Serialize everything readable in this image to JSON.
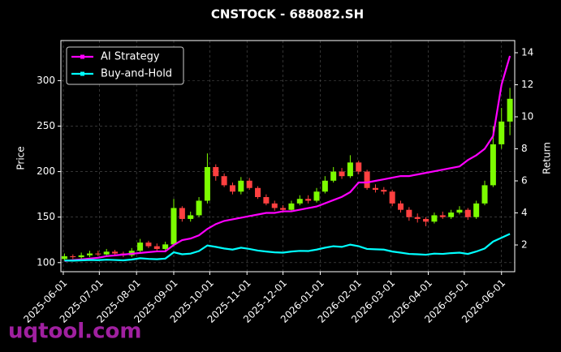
{
  "chart_data": {
    "type": "candlestick",
    "title": "CNSTOCK - 688082.SH",
    "ylabel": "Price",
    "y2label": "Return",
    "watermark": "uqtool.com",
    "legend": "upper left",
    "grid": true,
    "up_color": "#7cfc00",
    "down_color": "#ff4040",
    "x": [
      "2025-06-02",
      "2025-06-09",
      "2025-06-16",
      "2025-06-23",
      "2025-06-30",
      "2025-07-07",
      "2025-07-14",
      "2025-07-21",
      "2025-07-28",
      "2025-08-04",
      "2025-08-11",
      "2025-08-18",
      "2025-08-25",
      "2025-09-01",
      "2025-09-08",
      "2025-09-15",
      "2025-09-22",
      "2025-09-29",
      "2025-10-06",
      "2025-10-13",
      "2025-10-20",
      "2025-10-27",
      "2025-11-03",
      "2025-11-10",
      "2025-11-17",
      "2025-11-24",
      "2025-12-01",
      "2025-12-08",
      "2025-12-15",
      "2025-12-22",
      "2025-12-29",
      "2026-01-05",
      "2026-01-12",
      "2026-01-19",
      "2026-01-26",
      "2026-02-02",
      "2026-02-09",
      "2026-02-16",
      "2026-02-23",
      "2026-03-02",
      "2026-03-09",
      "2026-03-16",
      "2026-03-23",
      "2026-03-30",
      "2026-04-06",
      "2026-04-13",
      "2026-04-20",
      "2026-04-27",
      "2026-05-04",
      "2026-05-11",
      "2026-05-18",
      "2026-05-25",
      "2026-06-01",
      "2026-06-08"
    ],
    "open": [
      104,
      107,
      106,
      108,
      110,
      109,
      112,
      110,
      108,
      113,
      122,
      118,
      115,
      120,
      160,
      148,
      152,
      168,
      205,
      195,
      185,
      178,
      190,
      182,
      172,
      165,
      160,
      158,
      165,
      170,
      168,
      178,
      190,
      200,
      195,
      210,
      200,
      182,
      180,
      178,
      165,
      158,
      150,
      148,
      145,
      152,
      150,
      155,
      158,
      150,
      165,
      185,
      230,
      255
    ],
    "high": [
      110,
      109,
      111,
      113,
      113,
      115,
      114,
      112,
      116,
      126,
      124,
      121,
      123,
      170,
      162,
      156,
      172,
      220,
      208,
      198,
      188,
      194,
      193,
      184,
      175,
      168,
      163,
      168,
      174,
      174,
      182,
      195,
      205,
      204,
      218,
      212,
      202,
      186,
      183,
      180,
      168,
      161,
      154,
      150,
      155,
      156,
      158,
      162,
      160,
      168,
      190,
      250,
      270,
      292
    ],
    "low": [
      102,
      104,
      104,
      106,
      107,
      107,
      108,
      106,
      106,
      111,
      116,
      113,
      113,
      118,
      145,
      145,
      150,
      165,
      190,
      183,
      175,
      175,
      180,
      170,
      163,
      157,
      155,
      156,
      163,
      165,
      166,
      176,
      188,
      192,
      193,
      197,
      180,
      177,
      175,
      162,
      155,
      146,
      144,
      140,
      143,
      148,
      148,
      153,
      147,
      148,
      163,
      183,
      225,
      240
    ],
    "close": [
      107,
      106,
      108,
      110,
      109,
      112,
      110,
      108,
      113,
      122,
      118,
      115,
      120,
      160,
      148,
      152,
      168,
      205,
      195,
      185,
      178,
      190,
      182,
      172,
      165,
      160,
      158,
      165,
      170,
      168,
      178,
      190,
      200,
      195,
      210,
      200,
      182,
      180,
      178,
      165,
      158,
      150,
      148,
      145,
      152,
      150,
      155,
      158,
      150,
      165,
      185,
      230,
      255,
      280
    ],
    "series": [
      {
        "name": "AI Strategy",
        "color": "#ff00ff",
        "axis": "y2",
        "values": [
          1.0,
          1.05,
          1.1,
          1.15,
          1.2,
          1.3,
          1.35,
          1.4,
          1.45,
          1.5,
          1.55,
          1.6,
          1.6,
          2.0,
          2.3,
          2.4,
          2.6,
          3.0,
          3.3,
          3.5,
          3.6,
          3.7,
          3.8,
          3.9,
          4.0,
          4.0,
          4.1,
          4.1,
          4.2,
          4.3,
          4.4,
          4.6,
          4.8,
          5.0,
          5.3,
          5.9,
          5.9,
          6.0,
          6.1,
          6.2,
          6.3,
          6.3,
          6.4,
          6.5,
          6.6,
          6.7,
          6.8,
          6.9,
          7.3,
          7.6,
          8.0,
          8.8,
          12.0,
          13.8
        ]
      },
      {
        "name": "Buy-and-Hold",
        "color": "#00ffff",
        "axis": "y2",
        "values": [
          1.03,
          1.02,
          1.04,
          1.06,
          1.05,
          1.08,
          1.06,
          1.04,
          1.09,
          1.17,
          1.13,
          1.11,
          1.15,
          1.54,
          1.42,
          1.46,
          1.62,
          1.97,
          1.88,
          1.78,
          1.71,
          1.83,
          1.75,
          1.65,
          1.59,
          1.54,
          1.52,
          1.59,
          1.63,
          1.62,
          1.71,
          1.83,
          1.92,
          1.88,
          2.02,
          1.92,
          1.75,
          1.73,
          1.71,
          1.59,
          1.52,
          1.44,
          1.42,
          1.39,
          1.46,
          1.44,
          1.49,
          1.52,
          1.44,
          1.59,
          1.78,
          2.21,
          2.45,
          2.69
        ]
      }
    ],
    "xlim": [
      "2025-05-30",
      "2026-06-12"
    ],
    "xticks": [
      "2025-06-01",
      "2025-07-01",
      "2025-08-01",
      "2025-09-01",
      "2025-10-01",
      "2025-11-01",
      "2025-12-01",
      "2026-01-01",
      "2026-02-01",
      "2026-03-01",
      "2026-04-01",
      "2026-05-01",
      "2026-06-01"
    ],
    "ylim": [
      90,
      344
    ],
    "yticks": [
      100,
      150,
      200,
      250,
      300
    ],
    "y2lim": [
      0.33,
      14.76
    ],
    "y2ticks": [
      2,
      4,
      6,
      8,
      10,
      12,
      14
    ]
  }
}
